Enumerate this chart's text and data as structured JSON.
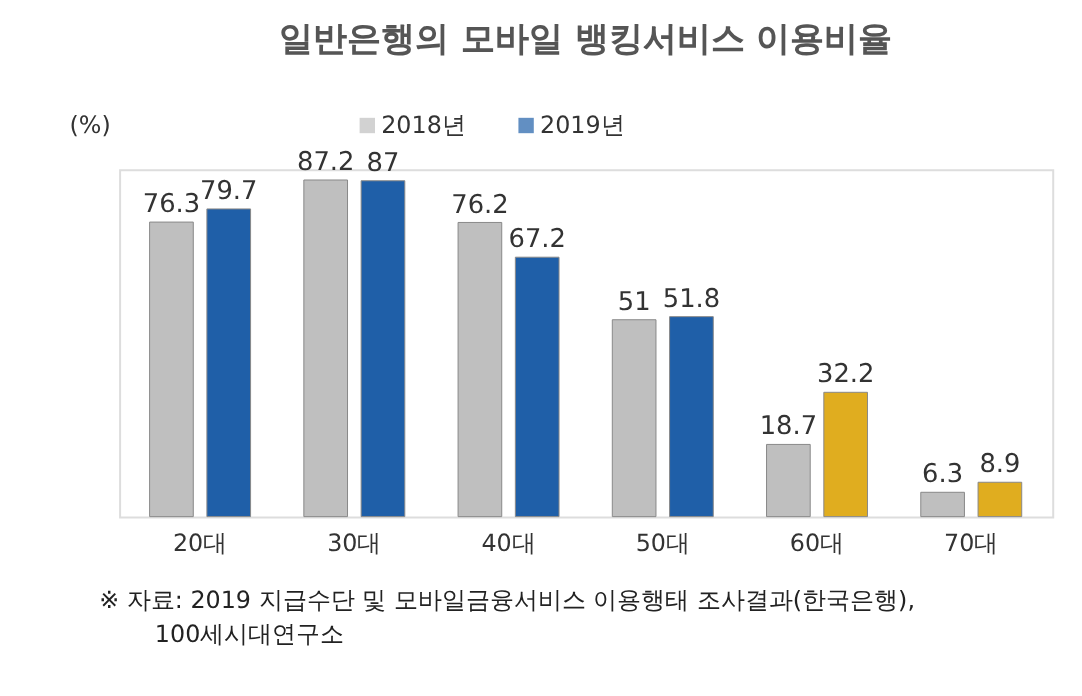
{
  "chart_data": {
    "type": "bar",
    "title": "일반은행의 모바일 뱅킹서비스 이용비율",
    "ylabel": "(%)",
    "categories": [
      "20대",
      "30대",
      "40대",
      "50대",
      "60대",
      "70대"
    ],
    "series": [
      {
        "name": "2018년",
        "color": "#bfbfbf",
        "values": [
          76.3,
          87.2,
          76.2,
          51,
          18.7,
          6.3
        ]
      },
      {
        "name": "2019년",
        "color": "#1f5fa8",
        "colors": [
          "#1f5fa8",
          "#1f5fa8",
          "#1f5fa8",
          "#1f5fa8",
          "#e0ad1f",
          "#e0ad1f"
        ],
        "values": [
          79.7,
          87,
          67.2,
          51.8,
          32.2,
          8.9
        ]
      }
    ],
    "data_labels": true,
    "legend": "top",
    "grid": false,
    "annotations": [
      "※ 자료: 2019 지급수단 및 모바일금융서비스 이용행태 조사결과(한국은행),",
      "100세시대연구소"
    ]
  }
}
